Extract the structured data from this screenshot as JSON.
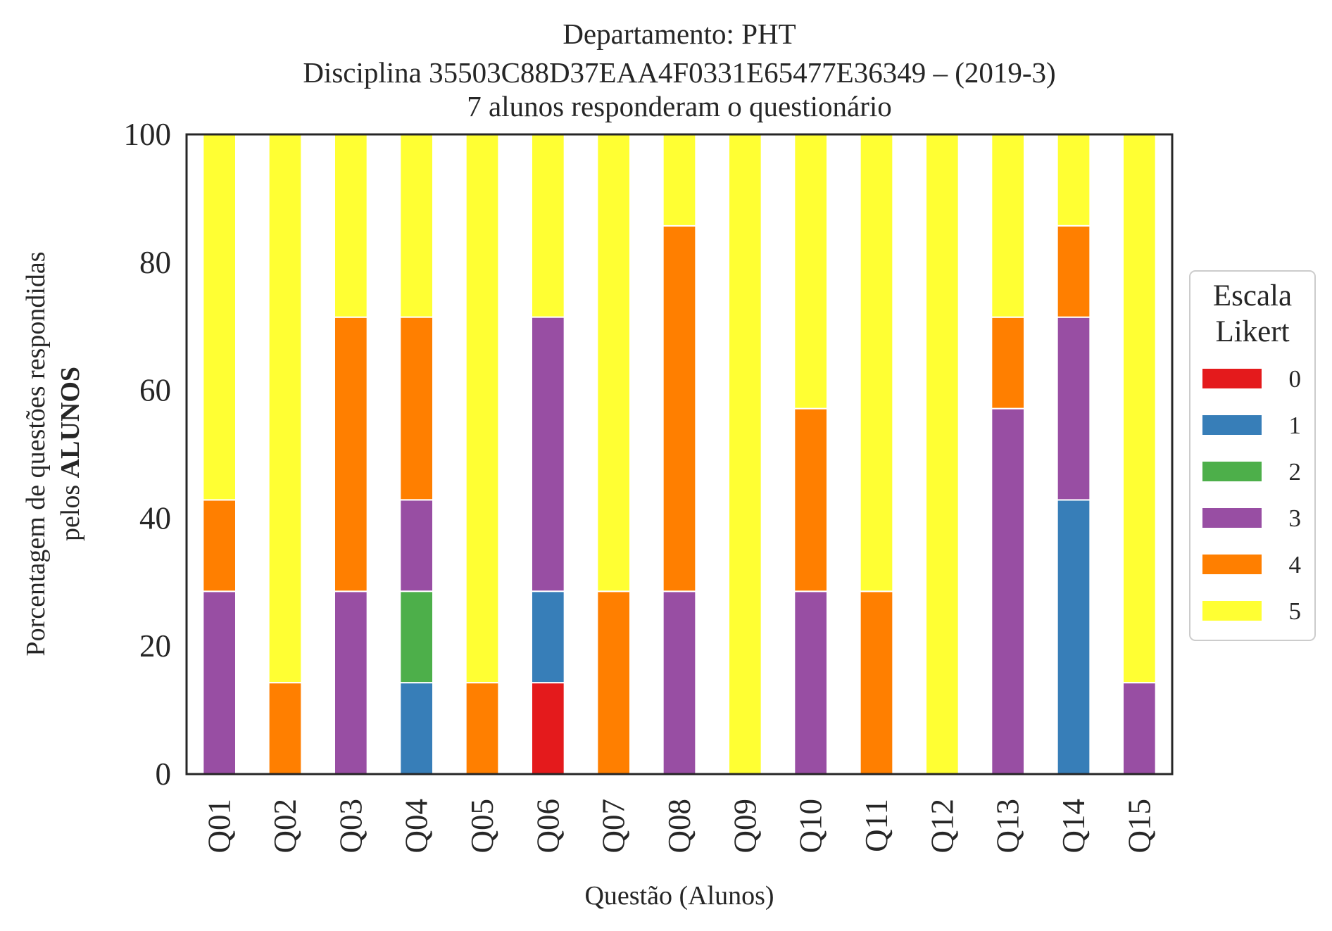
{
  "chart_data": {
    "type": "bar",
    "stacked": true,
    "title_lines": [
      "Departamento: PHT",
      "Disciplina 35503C88D37EAA4F0331E65477E36349 – (2019-3)",
      "7 alunos responderam o questionário"
    ],
    "xlabel": "Questão (Alunos)",
    "ylabel_line1": "Porcentagem de questões respondidas",
    "ylabel_line2_prefix": "pelos ",
    "ylabel_line2_bold": "ALUNOS",
    "ylim": [
      0,
      100
    ],
    "yticks": [
      "0",
      "20",
      "40",
      "60",
      "80",
      "100"
    ],
    "grid": false,
    "legend_placement": "right",
    "legend_title_lines": [
      "Escala",
      "Likert"
    ],
    "categories": [
      "Q01",
      "Q02",
      "Q03",
      "Q04",
      "Q05",
      "Q06",
      "Q07",
      "Q08",
      "Q09",
      "Q10",
      "Q11",
      "Q12",
      "Q13",
      "Q14",
      "Q15"
    ],
    "series": [
      {
        "name": "0",
        "color": "#e41a1c",
        "values": [
          0,
          0,
          0,
          0,
          0,
          14.29,
          0,
          0,
          0,
          0,
          0,
          0,
          0,
          0,
          0
        ]
      },
      {
        "name": "1",
        "color": "#377eb8",
        "values": [
          0,
          0,
          0,
          14.29,
          0,
          14.29,
          0,
          0,
          0,
          0,
          0,
          0,
          0,
          42.86,
          0
        ]
      },
      {
        "name": "2",
        "color": "#4daf4a",
        "values": [
          0,
          0,
          0,
          14.29,
          0,
          0,
          0,
          0,
          0,
          0,
          0,
          0,
          0,
          0,
          0
        ]
      },
      {
        "name": "3",
        "color": "#984ea3",
        "values": [
          28.57,
          0,
          28.57,
          14.29,
          0,
          42.86,
          0,
          28.57,
          0,
          28.57,
          0,
          0,
          57.14,
          28.57,
          14.29
        ]
      },
      {
        "name": "4",
        "color": "#ff7f00",
        "values": [
          14.29,
          14.29,
          42.86,
          28.57,
          14.29,
          0,
          28.57,
          57.14,
          0,
          28.57,
          28.57,
          0,
          14.29,
          14.29,
          0
        ]
      },
      {
        "name": "5",
        "color": "#ffff33",
        "values": [
          57.14,
          85.71,
          28.57,
          28.57,
          85.71,
          28.57,
          71.43,
          14.29,
          100,
          42.86,
          71.43,
          100,
          28.57,
          14.29,
          85.71
        ]
      }
    ]
  }
}
